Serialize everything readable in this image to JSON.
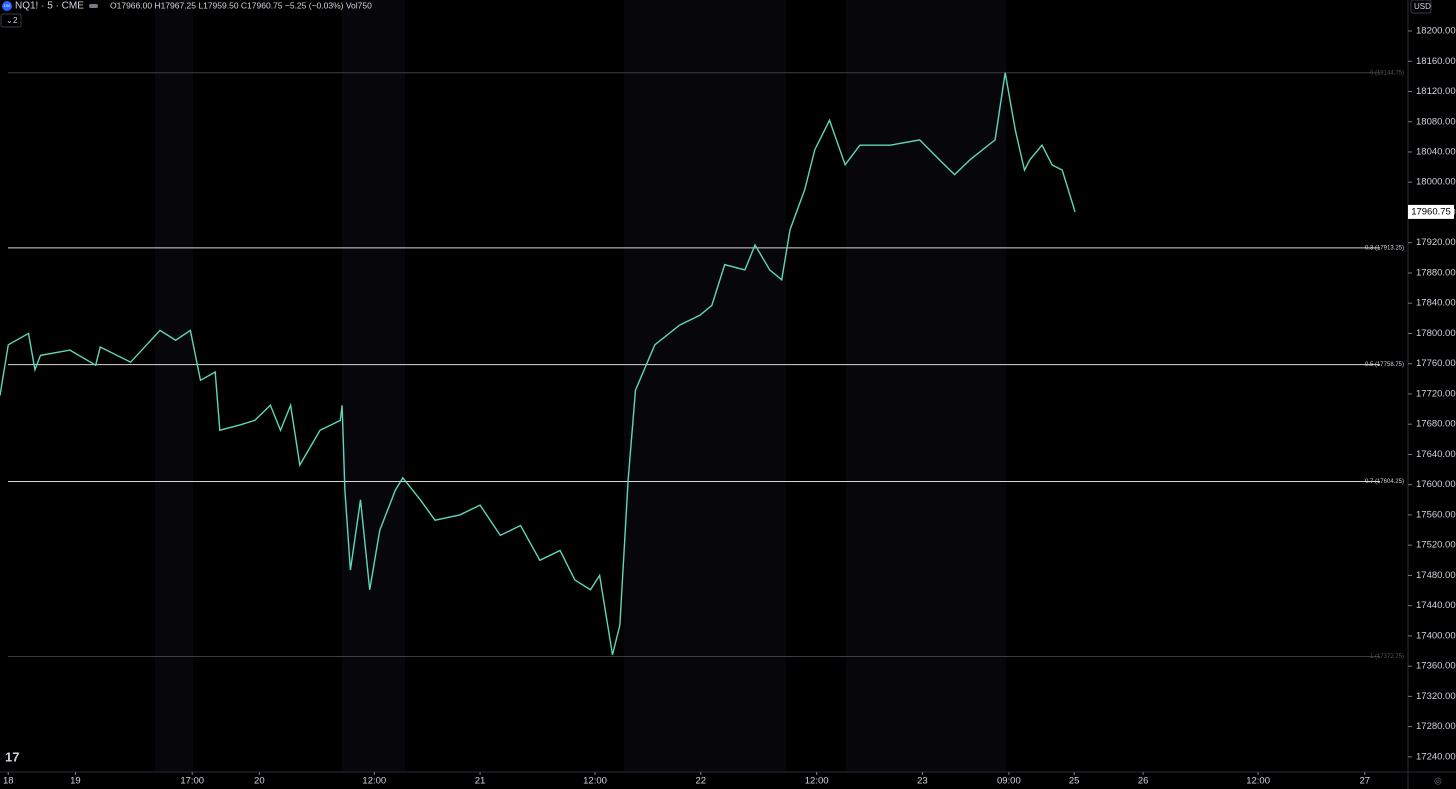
{
  "chart_data": {
    "type": "line",
    "symbol": "NQ1! · 5 · CME",
    "symbol_icon": "100",
    "ohlc": "O17966.00 H17967.25 L17959.50 C17960.75 −5.25 (−0.03%) Vol750",
    "indicator_toggle": "2",
    "currency": "USD",
    "grid": false,
    "color": "#5ed6b8",
    "xlim": [
      -0.9,
      152.2
    ],
    "ylim": [
      17220,
      18241
    ],
    "xticks": [
      {
        "value": 0,
        "label": "18"
      },
      {
        "value": 7.3,
        "label": "19"
      },
      {
        "value": 20,
        "label": "17:00"
      },
      {
        "value": 27.3,
        "label": "20"
      },
      {
        "value": 39.8,
        "label": "12:00"
      },
      {
        "value": 51.3,
        "label": "21"
      },
      {
        "value": 63.8,
        "label": "12:00"
      },
      {
        "value": 75.3,
        "label": "22"
      },
      {
        "value": 87.9,
        "label": "12:00"
      },
      {
        "value": 99.4,
        "label": "23"
      },
      {
        "value": 108.8,
        "label": "09:00"
      },
      {
        "value": 115.9,
        "label": "25"
      },
      {
        "value": 123.4,
        "label": "26"
      },
      {
        "value": 135.9,
        "label": "12:00"
      },
      {
        "value": 147.5,
        "label": "27"
      }
    ],
    "yticks": [
      {
        "value": 17240,
        "label": "17240.00"
      },
      {
        "value": 17280,
        "label": "17280.00"
      },
      {
        "value": 17320,
        "label": "17320.00"
      },
      {
        "value": 17360,
        "label": "17360.00"
      },
      {
        "value": 17400,
        "label": "17400.00"
      },
      {
        "value": 17440,
        "label": "17440.00"
      },
      {
        "value": 17480,
        "label": "17480.00"
      },
      {
        "value": 17520,
        "label": "17520.00"
      },
      {
        "value": 17560,
        "label": "17560.00"
      },
      {
        "value": 17600,
        "label": "17600.00"
      },
      {
        "value": 17640,
        "label": "17640.00"
      },
      {
        "value": 17680,
        "label": "17680.00"
      },
      {
        "value": 17720,
        "label": "17720.00"
      },
      {
        "value": 17760,
        "label": "17760.00"
      },
      {
        "value": 17800,
        "label": "17800.00"
      },
      {
        "value": 17840,
        "label": "17840.00"
      },
      {
        "value": 17880,
        "label": "17880.00"
      },
      {
        "value": 17920,
        "label": "17920.00"
      },
      {
        "value": 17960,
        "label": "17960.00"
      },
      {
        "value": 18000,
        "label": "18000.00"
      },
      {
        "value": 18040,
        "label": "18040.00"
      },
      {
        "value": 18080,
        "label": "18080.00"
      },
      {
        "value": 18120,
        "label": "18120.00"
      },
      {
        "value": 18160,
        "label": "18160.00"
      },
      {
        "value": 18200,
        "label": "18200.00"
      }
    ],
    "fib_levels": [
      {
        "value": 18144.75,
        "label": "0 (18144.75)"
      },
      {
        "value": 17913.25,
        "label": "0.3 (17913.25)"
      },
      {
        "value": 17758.75,
        "label": "0.5 (17758.75)"
      },
      {
        "value": 17604.25,
        "label": "0.7 (17604.25)"
      },
      {
        "value": 17372.75,
        "label": "1 (17372.75)"
      }
    ],
    "last_price": 17960.75,
    "series": [
      {
        "name": "NQ1!",
        "x": [
          -0.9,
          0,
          2.2,
          2.9,
          3.5,
          6.7,
          9.5,
          10,
          13.3,
          16.5,
          18.2,
          19.8,
          20.9,
          22.5,
          23,
          25.2,
          26.8,
          28.5,
          29.6,
          30.7,
          31.7,
          33.9,
          36.1,
          36.3,
          36.6,
          37.2,
          38.3,
          39.3,
          40.4,
          42.1,
          42.9,
          44.8,
          46.4,
          49.1,
          51.3,
          53.5,
          55.7,
          57.8,
          60,
          61.6,
          63.3,
          64.3,
          65.7,
          66.5,
          67.4,
          68.2,
          70.3,
          73,
          75.2,
          76.5,
          77.9,
          80.1,
          81.2,
          82.8,
          84.1,
          85,
          86.6,
          87.7,
          89.3,
          91,
          92.6,
          95.9,
          99.1,
          101.3,
          102.9,
          104.6,
          107.3,
          108.4,
          109.5,
          110.5,
          111.1,
          112.4,
          113.5,
          114.6,
          116
        ],
        "values": [
          17718,
          17785,
          17800,
          17752,
          17771,
          17778,
          17758,
          17782,
          17762,
          17804,
          17791,
          17804,
          17738,
          17749,
          17672,
          17679,
          17685,
          17705,
          17672,
          17705,
          17626,
          17672,
          17685,
          17705,
          17593,
          17487,
          17580,
          17461,
          17540,
          17593,
          17609,
          17580,
          17553,
          17560,
          17573,
          17533,
          17546,
          17500,
          17513,
          17474,
          17461,
          17480,
          17375,
          17414,
          17606,
          17725,
          17785,
          17811,
          17824,
          17837,
          17891,
          17884,
          17917,
          17884,
          17871,
          17937,
          17990,
          18043,
          18082,
          18023,
          18049,
          18049,
          18056,
          18029,
          18010,
          18030,
          18056,
          18144.75,
          18069,
          18016,
          18030,
          18049,
          18023,
          18016,
          17960.75
        ]
      }
    ]
  }
}
